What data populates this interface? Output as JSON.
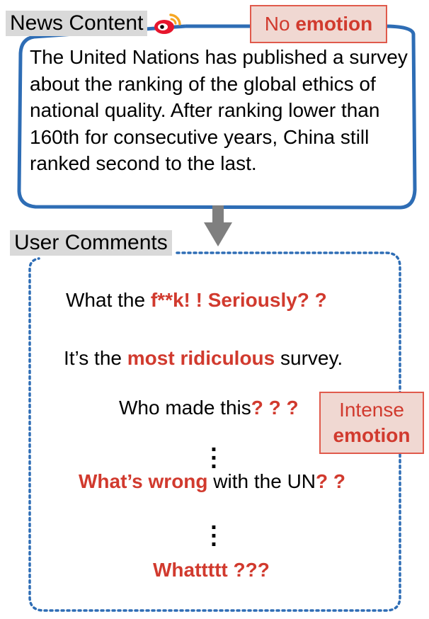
{
  "news": {
    "label": "News Content",
    "text": "The United Nations has published a survey about the ranking of the global ethics of national quality. After ranking lower than 160th for consecutive years, China still ranked second to the last."
  },
  "no_emotion": {
    "normal": "No",
    "bold": "emotion"
  },
  "comments": {
    "label": "User Comments",
    "c1": {
      "plain": "What the ",
      "bold": "f**k! !  Seriously? ?"
    },
    "c2": {
      "plain1": "It’s the ",
      "bold": "most ridiculous",
      "plain2": " survey."
    },
    "c3": {
      "plain": "Who made this",
      "bold": "? ? ?"
    },
    "c4": {
      "bold": "What’s wrong",
      "plain": " with the UN",
      "bold2": "? ?"
    },
    "c5": {
      "bold": "Whattttt ???"
    }
  },
  "intense_emotion": {
    "normal": "Intense",
    "bold": "emotion"
  },
  "colors": {
    "accent_red": "#d13a2e",
    "box_blue": "#2e6db5",
    "arrow_gray": "#7f7f7f",
    "tag_gray": "#d9d9d9"
  },
  "icons": {
    "weibo": "weibo-logo-icon",
    "arrow": "down-arrow-icon"
  }
}
